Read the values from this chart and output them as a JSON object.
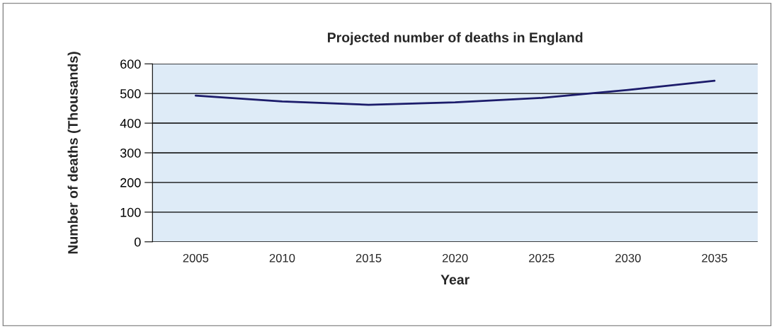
{
  "chart_data": {
    "type": "line",
    "title": "Projected number of deaths in England",
    "xlabel": "Year",
    "ylabel": "Number of deaths (Thousands)",
    "categories": [
      "2005",
      "2010",
      "2015",
      "2020",
      "2025",
      "2030",
      "2035"
    ],
    "series": [
      {
        "color": "#1c1c6b",
        "values": [
          493,
          473,
          462,
          470,
          485,
          512,
          543
        ]
      }
    ],
    "ylim": [
      0,
      600
    ],
    "yticks": [
      0,
      100,
      200,
      300,
      400,
      500,
      600
    ],
    "grid": "y",
    "marker": "none",
    "line_style": "solid"
  }
}
